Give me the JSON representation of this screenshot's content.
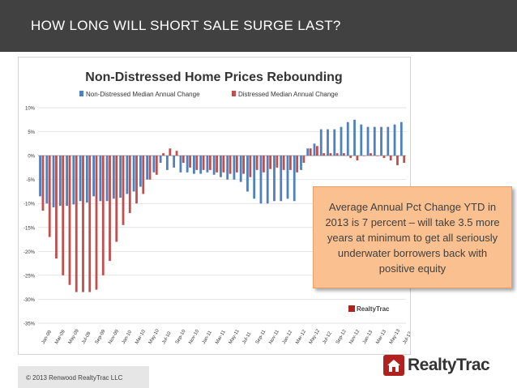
{
  "slide": {
    "title": "HOW LONG WILL SHORT SALE SURGE LAST?",
    "callout": "Average Annual Pct Change YTD  in 2013 is 7 percent – will take 3.5 more years at minimum to get all seriously underwater borrowers back with positive equity",
    "footer": "© 2013 Renwood RealtyTrac LLC",
    "brand": "RealtyTrac",
    "watermark": "RealtyTrac",
    "colors": {
      "header": "#414141",
      "nondistressed": "#4f81bd",
      "distressed": "#c0504d",
      "callout": "#fac090",
      "brand": "#b1211f"
    }
  },
  "chart_data": {
    "type": "bar",
    "title": "Non-Distressed Home Prices Rebounding",
    "xlabel": "",
    "ylabel": "",
    "ylim": [
      -35,
      10
    ],
    "grid": true,
    "legend": "top",
    "yticks": [
      "10%",
      "5%",
      "0%",
      "-5%",
      "-10%",
      "-15%",
      "-20%",
      "-25%",
      "-30%",
      "-35%"
    ],
    "tick_labels": [
      "Jan-09",
      "Mar-09",
      "May-09",
      "Jul-09",
      "Sep-09",
      "Nov-09",
      "Jan-10",
      "Mar-10",
      "May-10",
      "Jul-10",
      "Sep-10",
      "Nov-10",
      "Jan-11",
      "Mar-11",
      "May-11",
      "Jul-11",
      "Sep-11",
      "Nov-11",
      "Jan-12",
      "Mar-12",
      "May-12",
      "Jul-12",
      "Sep-12",
      "Nov-12",
      "Jan-13",
      "Mar-13",
      "May-13",
      "Jul-13"
    ],
    "categories": [
      "Jan-09",
      "Feb-09",
      "Mar-09",
      "Apr-09",
      "May-09",
      "Jun-09",
      "Jul-09",
      "Aug-09",
      "Sep-09",
      "Oct-09",
      "Nov-09",
      "Dec-09",
      "Jan-10",
      "Feb-10",
      "Mar-10",
      "Apr-10",
      "May-10",
      "Jun-10",
      "Jul-10",
      "Aug-10",
      "Sep-10",
      "Oct-10",
      "Nov-10",
      "Dec-10",
      "Jan-11",
      "Feb-11",
      "Mar-11",
      "Apr-11",
      "May-11",
      "Jun-11",
      "Jul-11",
      "Aug-11",
      "Sep-11",
      "Oct-11",
      "Nov-11",
      "Dec-11",
      "Jan-12",
      "Feb-12",
      "Mar-12",
      "Apr-12",
      "May-12",
      "Jun-12",
      "Jul-12",
      "Aug-12",
      "Sep-12",
      "Oct-12",
      "Nov-12",
      "Dec-12",
      "Jan-13",
      "Feb-13",
      "Mar-13",
      "Apr-13",
      "May-13",
      "Jun-13",
      "Jul-13"
    ],
    "series": [
      {
        "name": "Non-Distressed Median Annual Change",
        "color": "#4f81bd",
        "values": [
          -8.5,
          -10.0,
          -10.8,
          -10.5,
          -10.5,
          -10.2,
          -9.5,
          -9.8,
          -8.5,
          -9.5,
          -9.5,
          -9.0,
          -8.8,
          -8.0,
          -7.5,
          -6.5,
          -5.0,
          -3.5,
          -1.5,
          -3.0,
          -2.5,
          -3.5,
          -3.5,
          -3.8,
          -3.8,
          -3.5,
          -4.0,
          -4.5,
          -5.0,
          -5.0,
          -5.5,
          -7.5,
          -9.0,
          -10.0,
          -10.0,
          -9.5,
          -9.5,
          -9.0,
          -9.5,
          -3.0,
          1.5,
          2.5,
          5.5,
          5.5,
          5.5,
          6.0,
          7.0,
          7.5,
          6.5,
          6.0,
          6.0,
          6.0,
          6.0,
          6.5,
          7.0
        ]
      },
      {
        "name": "Distressed Median Annual Change",
        "color": "#c0504d",
        "values": [
          -11.5,
          -17.0,
          -21.5,
          -25.0,
          -27.0,
          -28.5,
          -28.5,
          -28.5,
          -28.0,
          -25.0,
          -22.0,
          -18.0,
          -14.5,
          -12.0,
          -10.0,
          -8.0,
          -5.0,
          -4.0,
          0.5,
          1.5,
          1.0,
          -1.5,
          -2.5,
          -3.0,
          -3.0,
          -3.0,
          -3.5,
          -3.5,
          -3.8,
          -3.5,
          -3.8,
          -4.5,
          -3.0,
          -3.5,
          -2.8,
          -2.5,
          -3.0,
          -3.0,
          -3.5,
          -1.5,
          1.5,
          2.0,
          0.5,
          0.5,
          0.5,
          0.5,
          -0.5,
          -1.0,
          0.0,
          0.5,
          0.0,
          -0.5,
          -1.0,
          -2.0,
          -1.5
        ]
      }
    ]
  }
}
